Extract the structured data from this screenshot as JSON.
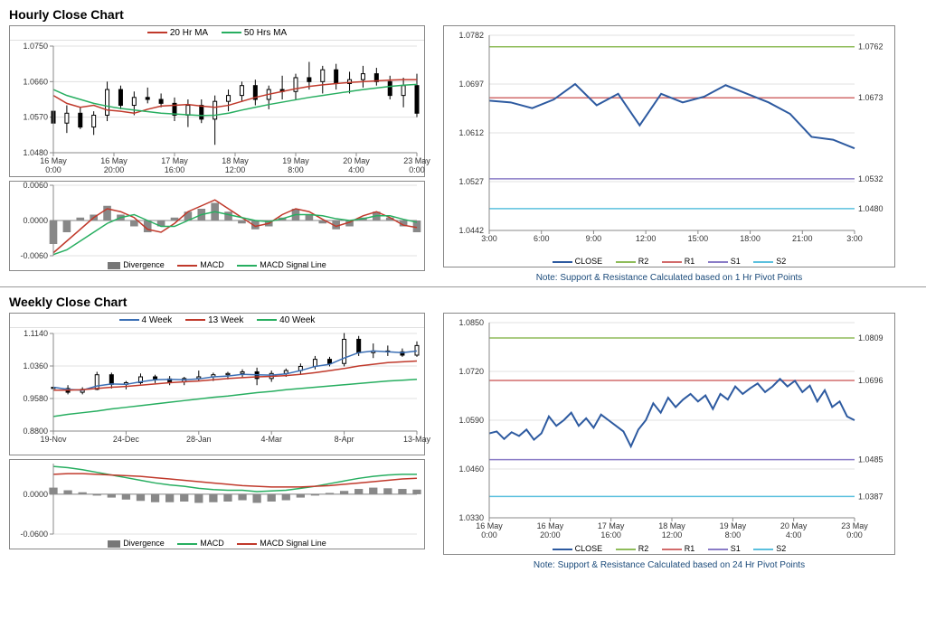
{
  "sections": {
    "hourly": {
      "title": "Hourly Close Chart",
      "price": {
        "yticks": [
          1.048,
          1.057,
          1.066,
          1.075
        ],
        "xlabels": [
          "16 May\n0:00",
          "16 May\n20:00",
          "17 May\n16:00",
          "18 May\n12:00",
          "19 May\n8:00",
          "20 May\n4:00",
          "23 May\n0:00"
        ],
        "legend": [
          {
            "label": "20 Hr MA",
            "color": "#c0392b"
          },
          {
            "label": "50 Hrs MA",
            "color": "#27ae60"
          }
        ],
        "ma20_color": "#c0392b",
        "ma50_color": "#27ae60",
        "candle_color": "#000",
        "candles": [
          {
            "x": 0,
            "o": 1.0585,
            "h": 1.062,
            "l": 1.053,
            "c": 1.0555
          },
          {
            "x": 1,
            "o": 1.0555,
            "h": 1.06,
            "l": 1.053,
            "c": 1.058
          },
          {
            "x": 2,
            "o": 1.058,
            "h": 1.0595,
            "l": 1.054,
            "c": 1.0545
          },
          {
            "x": 3,
            "o": 1.0545,
            "h": 1.0585,
            "l": 1.0525,
            "c": 1.0575
          },
          {
            "x": 4,
            "o": 1.0575,
            "h": 1.066,
            "l": 1.056,
            "c": 1.064
          },
          {
            "x": 5,
            "o": 1.064,
            "h": 1.065,
            "l": 1.059,
            "c": 1.06
          },
          {
            "x": 6,
            "o": 1.06,
            "h": 1.0635,
            "l": 1.0575,
            "c": 1.062
          },
          {
            "x": 7,
            "o": 1.062,
            "h": 1.0645,
            "l": 1.0605,
            "c": 1.0615
          },
          {
            "x": 8,
            "o": 1.0615,
            "h": 1.063,
            "l": 1.0595,
            "c": 1.0605
          },
          {
            "x": 9,
            "o": 1.0605,
            "h": 1.062,
            "l": 1.056,
            "c": 1.0575
          },
          {
            "x": 10,
            "o": 1.0575,
            "h": 1.0615,
            "l": 1.0545,
            "c": 1.06
          },
          {
            "x": 11,
            "o": 1.06,
            "h": 1.0615,
            "l": 1.0555,
            "c": 1.0565
          },
          {
            "x": 12,
            "o": 1.0565,
            "h": 1.0625,
            "l": 1.05,
            "c": 1.061
          },
          {
            "x": 13,
            "o": 1.061,
            "h": 1.064,
            "l": 1.0585,
            "c": 1.0625
          },
          {
            "x": 14,
            "o": 1.0625,
            "h": 1.066,
            "l": 1.061,
            "c": 1.065
          },
          {
            "x": 15,
            "o": 1.065,
            "h": 1.0665,
            "l": 1.06,
            "c": 1.0615
          },
          {
            "x": 16,
            "o": 1.0615,
            "h": 1.065,
            "l": 1.059,
            "c": 1.064
          },
          {
            "x": 17,
            "o": 1.064,
            "h": 1.0675,
            "l": 1.0615,
            "c": 1.0635
          },
          {
            "x": 18,
            "o": 1.0635,
            "h": 1.068,
            "l": 1.0615,
            "c": 1.067
          },
          {
            "x": 19,
            "o": 1.067,
            "h": 1.071,
            "l": 1.064,
            "c": 1.066
          },
          {
            "x": 20,
            "o": 1.066,
            "h": 1.07,
            "l": 1.063,
            "c": 1.069
          },
          {
            "x": 21,
            "o": 1.069,
            "h": 1.0705,
            "l": 1.064,
            "c": 1.0655
          },
          {
            "x": 22,
            "o": 1.0655,
            "h": 1.0685,
            "l": 1.063,
            "c": 1.0665
          },
          {
            "x": 23,
            "o": 1.0665,
            "h": 1.07,
            "l": 1.0645,
            "c": 1.068
          },
          {
            "x": 24,
            "o": 1.068,
            "h": 1.0695,
            "l": 1.065,
            "c": 1.066
          },
          {
            "x": 25,
            "o": 1.066,
            "h": 1.0675,
            "l": 1.0615,
            "c": 1.0625
          },
          {
            "x": 26,
            "o": 1.0625,
            "h": 1.067,
            "l": 1.0595,
            "c": 1.065
          },
          {
            "x": 27,
            "o": 1.065,
            "h": 1.068,
            "l": 1.057,
            "c": 1.058
          }
        ],
        "ma20": [
          1.0625,
          1.0605,
          1.0595,
          1.06,
          1.0588,
          1.0585,
          1.058,
          1.059,
          1.0598,
          1.06,
          1.0602,
          1.0598,
          1.0595,
          1.06,
          1.061,
          1.062,
          1.0628,
          1.0635,
          1.0642,
          1.0648,
          1.0652,
          1.0655,
          1.0658,
          1.066,
          1.0662,
          1.0664,
          1.0665,
          1.0665
        ],
        "ma50": [
          1.064,
          1.0625,
          1.0615,
          1.0605,
          1.0598,
          1.0592,
          1.0588,
          1.0584,
          1.058,
          1.0578,
          1.0576,
          1.0574,
          1.0575,
          1.058,
          1.0588,
          1.0595,
          1.0602,
          1.0608,
          1.0614,
          1.062,
          1.0625,
          1.063,
          1.0635,
          1.064,
          1.0644,
          1.0648,
          1.0651,
          1.0653
        ]
      },
      "macd": {
        "yticks": [
          -0.006,
          0.0,
          0.006
        ],
        "legend": [
          {
            "label": "Divergence",
            "color": "#777",
            "type": "box"
          },
          {
            "label": "MACD",
            "color": "#c0392b"
          },
          {
            "label": "MACD Signal Line",
            "color": "#27ae60"
          }
        ],
        "hist": [
          -0.004,
          -0.002,
          0.0005,
          0.001,
          0.0025,
          0.001,
          -0.001,
          -0.002,
          -0.001,
          0.0005,
          0.0015,
          0.002,
          0.003,
          0.0015,
          -0.0005,
          -0.0015,
          -0.001,
          0.0005,
          0.002,
          0.001,
          -0.0005,
          -0.0015,
          -0.001,
          0.0005,
          0.0015,
          0.0005,
          -0.001,
          -0.002
        ],
        "macd": [
          -0.0055,
          -0.0035,
          -0.0015,
          0.0005,
          0.002,
          0.0015,
          0.0005,
          -0.0015,
          -0.002,
          -0.0005,
          0.0015,
          0.0025,
          0.0035,
          0.002,
          0.0005,
          -0.001,
          -0.0005,
          0.001,
          0.002,
          0.0015,
          0.0002,
          -0.001,
          -0.0003,
          0.0008,
          0.0015,
          0.0005,
          -0.0008,
          -0.0012
        ],
        "signal": [
          -0.0058,
          -0.005,
          -0.0035,
          -0.002,
          -0.0005,
          0.0005,
          0.001,
          0.0,
          -0.001,
          -0.001,
          0.0,
          0.001,
          0.0015,
          0.001,
          0.0005,
          0.0,
          -0.0002,
          0.0003,
          0.001,
          0.001,
          0.0008,
          0.0003,
          0.0,
          0.0003,
          0.0008,
          0.0008,
          0.0002,
          -0.0003
        ]
      },
      "pivot": {
        "yticks": [
          1.0442,
          1.0527,
          1.0612,
          1.0697,
          1.0782
        ],
        "xlabels": [
          "3:00",
          "6:00",
          "9:00",
          "12:00",
          "15:00",
          "18:00",
          "21:00",
          "3:00"
        ],
        "levels": {
          "R2": 1.0762,
          "R1": 1.0673,
          "S1": 1.0532,
          "S2": 1.048
        },
        "colors": {
          "CLOSE": "#2d5aa0",
          "R2": "#8fbc5a",
          "R1": "#d26b6b",
          "S1": "#8a7cc7",
          "S2": "#5bc0de"
        },
        "close": [
          1.0668,
          1.0665,
          1.0655,
          1.067,
          1.0697,
          1.066,
          1.068,
          1.0625,
          1.068,
          1.0665,
          1.0675,
          1.0695,
          1.068,
          1.0665,
          1.0645,
          1.0605,
          1.06,
          1.0585
        ],
        "legend": [
          {
            "label": "CLOSE",
            "color": "#2d5aa0"
          },
          {
            "label": "R2",
            "color": "#8fbc5a"
          },
          {
            "label": "R1",
            "color": "#d26b6b"
          },
          {
            "label": "S1",
            "color": "#8a7cc7"
          },
          {
            "label": "S2",
            "color": "#5bc0de"
          }
        ],
        "note": "Note: Support & Resistance Calculated based on 1 Hr Pivot Points"
      }
    },
    "weekly": {
      "title": "Weekly Close Chart",
      "price": {
        "yticks": [
          0.88,
          0.958,
          1.036,
          1.114
        ],
        "xlabels": [
          "19-Nov",
          "24-Dec",
          "28-Jan",
          "4-Mar",
          "8-Apr",
          "13-May"
        ],
        "legend": [
          {
            "label": "4 Week",
            "color": "#3b6fb5"
          },
          {
            "label": "13 Week",
            "color": "#c0392b"
          },
          {
            "label": "40 Week",
            "color": "#27ae60"
          }
        ],
        "candle_color": "#000",
        "candles": [
          {
            "x": 0,
            "o": 0.985,
            "h": 0.998,
            "l": 0.975,
            "c": 0.982
          },
          {
            "x": 1,
            "o": 0.982,
            "h": 0.99,
            "l": 0.968,
            "c": 0.973
          },
          {
            "x": 2,
            "o": 0.973,
            "h": 0.985,
            "l": 0.968,
            "c": 0.98
          },
          {
            "x": 3,
            "o": 0.98,
            "h": 1.022,
            "l": 0.978,
            "c": 1.015
          },
          {
            "x": 4,
            "o": 1.015,
            "h": 1.02,
            "l": 0.982,
            "c": 0.992
          },
          {
            "x": 5,
            "o": 0.992,
            "h": 1.0,
            "l": 0.98,
            "c": 0.996
          },
          {
            "x": 6,
            "o": 0.996,
            "h": 1.018,
            "l": 0.992,
            "c": 1.01
          },
          {
            "x": 7,
            "o": 1.01,
            "h": 1.015,
            "l": 0.995,
            "c": 1.005
          },
          {
            "x": 8,
            "o": 1.005,
            "h": 1.012,
            "l": 0.99,
            "c": 0.998
          },
          {
            "x": 9,
            "o": 0.998,
            "h": 1.01,
            "l": 0.99,
            "c": 1.006
          },
          {
            "x": 10,
            "o": 1.006,
            "h": 1.025,
            "l": 1.0,
            "c": 1.01
          },
          {
            "x": 11,
            "o": 1.01,
            "h": 1.02,
            "l": 1.0,
            "c": 1.015
          },
          {
            "x": 12,
            "o": 1.015,
            "h": 1.022,
            "l": 1.004,
            "c": 1.018
          },
          {
            "x": 13,
            "o": 1.018,
            "h": 1.028,
            "l": 1.008,
            "c": 1.022
          },
          {
            "x": 14,
            "o": 1.022,
            "h": 1.032,
            "l": 0.99,
            "c": 1.006
          },
          {
            "x": 15,
            "o": 1.006,
            "h": 1.025,
            "l": 0.998,
            "c": 1.018
          },
          {
            "x": 16,
            "o": 1.018,
            "h": 1.03,
            "l": 1.01,
            "c": 1.025
          },
          {
            "x": 17,
            "o": 1.025,
            "h": 1.042,
            "l": 1.015,
            "c": 1.035
          },
          {
            "x": 18,
            "o": 1.035,
            "h": 1.06,
            "l": 1.028,
            "c": 1.052
          },
          {
            "x": 19,
            "o": 1.052,
            "h": 1.058,
            "l": 1.035,
            "c": 1.042
          },
          {
            "x": 20,
            "o": 1.042,
            "h": 1.115,
            "l": 1.035,
            "c": 1.1
          },
          {
            "x": 21,
            "o": 1.1,
            "h": 1.108,
            "l": 1.06,
            "c": 1.068
          },
          {
            "x": 22,
            "o": 1.068,
            "h": 1.09,
            "l": 1.055,
            "c": 1.072
          },
          {
            "x": 23,
            "o": 1.072,
            "h": 1.085,
            "l": 1.06,
            "c": 1.07
          },
          {
            "x": 24,
            "o": 1.07,
            "h": 1.078,
            "l": 1.058,
            "c": 1.062
          },
          {
            "x": 25,
            "o": 1.062,
            "h": 1.095,
            "l": 1.058,
            "c": 1.085
          }
        ],
        "ma4": [
          0.985,
          0.98,
          0.978,
          0.988,
          0.993,
          0.992,
          0.998,
          1.003,
          1.004,
          1.003,
          1.005,
          1.01,
          1.012,
          1.016,
          1.015,
          1.014,
          1.017,
          1.025,
          1.035,
          1.04,
          1.055,
          1.068,
          1.072,
          1.07,
          1.068,
          1.072
        ],
        "ma4_color": "#3b6fb5",
        "ma13": [
          0.978,
          0.978,
          0.979,
          0.982,
          0.985,
          0.987,
          0.99,
          0.993,
          0.996,
          0.998,
          1.0,
          1.003,
          1.006,
          1.008,
          1.01,
          1.011,
          1.013,
          1.016,
          1.02,
          1.025,
          1.03,
          1.036,
          1.04,
          1.044,
          1.046,
          1.048
        ],
        "ma13_color": "#c0392b",
        "ma40": [
          0.915,
          0.92,
          0.924,
          0.928,
          0.933,
          0.937,
          0.941,
          0.945,
          0.949,
          0.953,
          0.957,
          0.961,
          0.964,
          0.968,
          0.972,
          0.975,
          0.979,
          0.982,
          0.985,
          0.988,
          0.991,
          0.994,
          0.997,
          1.0,
          1.002,
          1.004
        ],
        "ma40_color": "#27ae60"
      },
      "macd": {
        "yticks": [
          -0.06,
          0.0
        ],
        "legend": [
          {
            "label": "Divergence",
            "color": "#777",
            "type": "box"
          },
          {
            "label": "MACD",
            "color": "#27ae60"
          },
          {
            "label": "MACD Signal Line",
            "color": "#c0392b"
          }
        ],
        "hist": [
          0.01,
          0.006,
          0.003,
          -0.002,
          -0.005,
          -0.008,
          -0.01,
          -0.012,
          -0.012,
          -0.011,
          -0.013,
          -0.012,
          -0.011,
          -0.009,
          -0.013,
          -0.011,
          -0.009,
          -0.005,
          -0.002,
          0.002,
          0.005,
          0.008,
          0.01,
          0.009,
          0.008,
          0.007
        ],
        "macd": [
          0.042,
          0.04,
          0.037,
          0.033,
          0.029,
          0.025,
          0.021,
          0.017,
          0.014,
          0.012,
          0.009,
          0.007,
          0.006,
          0.006,
          0.004,
          0.005,
          0.006,
          0.009,
          0.012,
          0.016,
          0.02,
          0.024,
          0.027,
          0.029,
          0.03,
          0.03
        ],
        "signal": [
          0.03,
          0.031,
          0.031,
          0.03,
          0.029,
          0.028,
          0.027,
          0.025,
          0.023,
          0.021,
          0.019,
          0.017,
          0.015,
          0.013,
          0.012,
          0.011,
          0.011,
          0.011,
          0.012,
          0.013,
          0.015,
          0.017,
          0.019,
          0.021,
          0.023,
          0.024
        ],
        "macd_color": "#27ae60",
        "signal_color": "#c0392b"
      },
      "pivot": {
        "yticks": [
          1.033,
          1.046,
          1.059,
          1.072,
          1.085
        ],
        "xlabels": [
          "16 May\n0:00",
          "16 May\n20:00",
          "17 May\n16:00",
          "18 May\n12:00",
          "19 May\n8:00",
          "20 May\n4:00",
          "23 May\n0:00"
        ],
        "levels": {
          "R2": 1.0809,
          "R1": 1.0696,
          "S1": 1.0485,
          "S2": 1.0387
        },
        "colors": {
          "CLOSE": "#2d5aa0",
          "R2": "#8fbc5a",
          "R1": "#d26b6b",
          "S1": "#8a7cc7",
          "S2": "#5bc0de"
        },
        "close": [
          1.0555,
          1.056,
          1.054,
          1.0558,
          1.0548,
          1.0565,
          1.0538,
          1.0555,
          1.06,
          1.0575,
          1.059,
          1.061,
          1.0575,
          1.0595,
          1.057,
          1.0605,
          1.059,
          1.0575,
          1.056,
          1.052,
          1.0565,
          1.059,
          1.0635,
          1.061,
          1.065,
          1.0625,
          1.0645,
          1.066,
          1.064,
          1.0656,
          1.062,
          1.066,
          1.0645,
          1.068,
          1.066,
          1.0675,
          1.0688,
          1.0665,
          1.068,
          1.07,
          1.068,
          1.0695,
          1.0665,
          1.0682,
          1.064,
          1.067,
          1.0625,
          1.064,
          1.06,
          1.059
        ],
        "legend": [
          {
            "label": "CLOSE",
            "color": "#2d5aa0"
          },
          {
            "label": "R2",
            "color": "#8fbc5a"
          },
          {
            "label": "R1",
            "color": "#d26b6b"
          },
          {
            "label": "S1",
            "color": "#8a7cc7"
          },
          {
            "label": "S2",
            "color": "#5bc0de"
          }
        ],
        "note": "Note: Support & Resistance Calculated based on 24 Hr Pivot Points"
      }
    }
  }
}
